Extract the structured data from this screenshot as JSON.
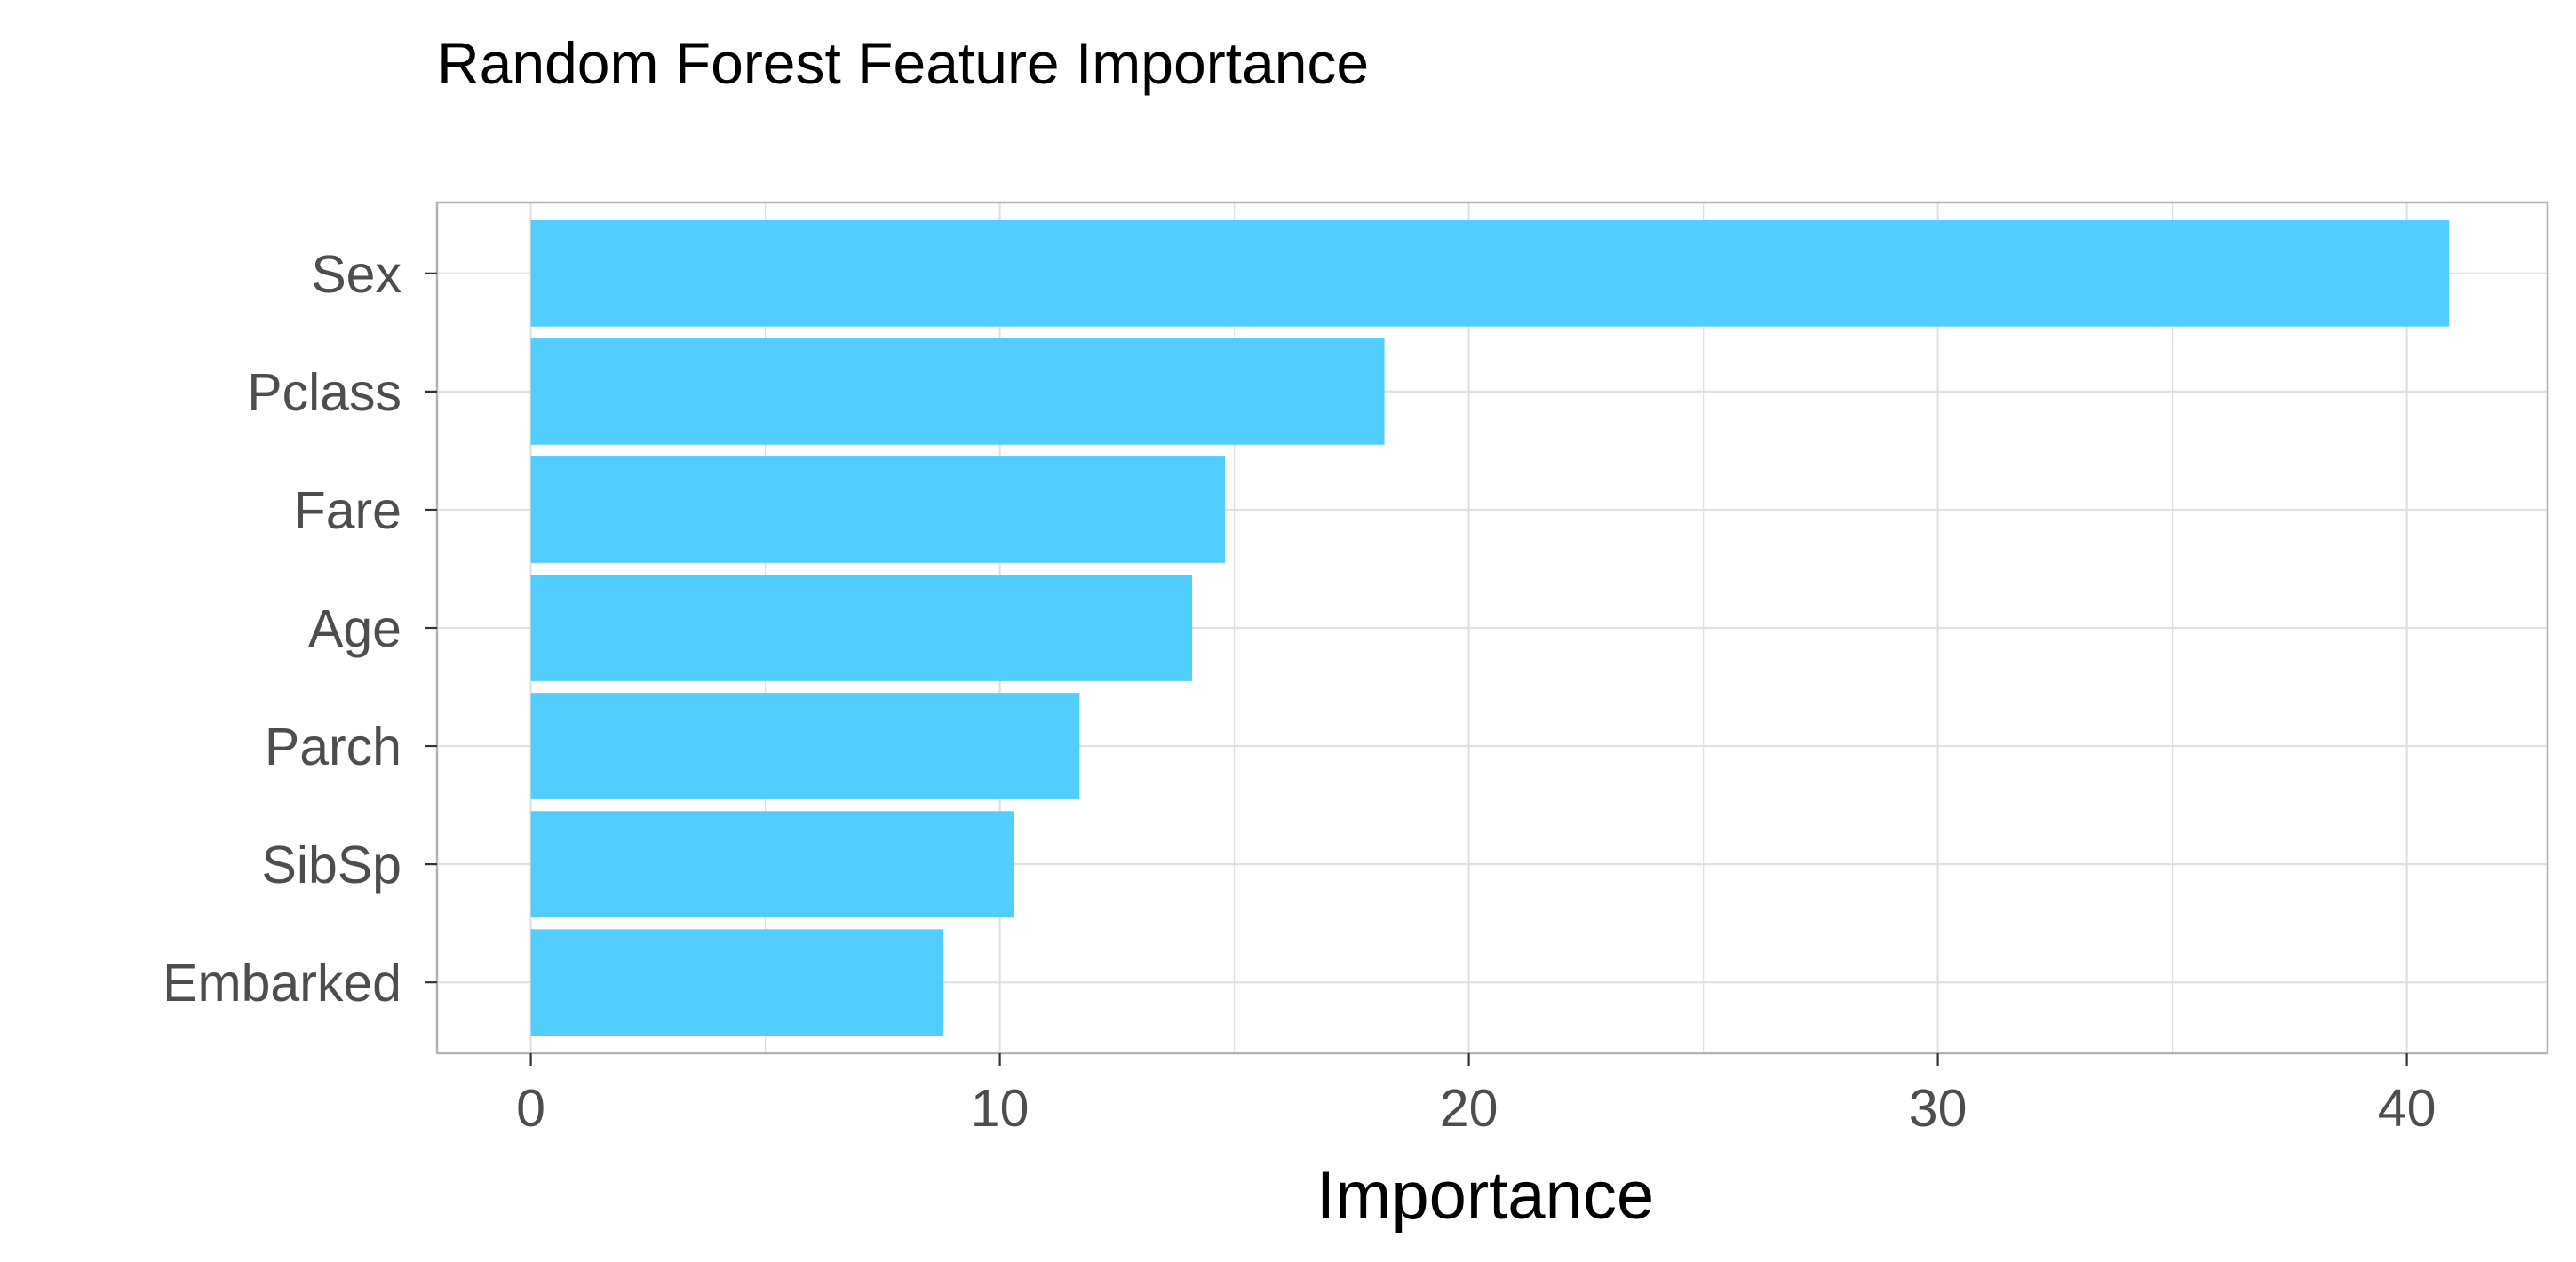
{
  "chart_data": {
    "type": "bar",
    "orientation": "horizontal",
    "title": "Random Forest Feature Importance",
    "xlabel": "Importance",
    "ylabel": "",
    "categories": [
      "Sex",
      "Pclass",
      "Fare",
      "Age",
      "Parch",
      "SibSp",
      "Embarked"
    ],
    "values": [
      40.9,
      18.2,
      14.8,
      14.1,
      11.7,
      10.3,
      8.8
    ],
    "xlim": [
      -2,
      43
    ],
    "xticks": [
      0,
      10,
      20,
      30,
      40
    ],
    "grid": true,
    "legend": "none",
    "colors": {
      "bar": "#52cefe",
      "grid": "#e0e0e0",
      "panel_border": "#b3b3b3"
    }
  }
}
